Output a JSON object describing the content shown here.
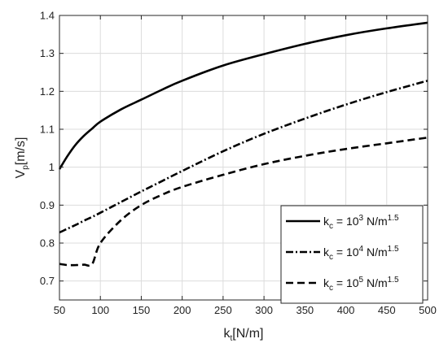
{
  "chart_data": {
    "type": "line",
    "xlabel": "k",
    "xlabel_sub": "t",
    "xlabel_unit": "[N/m]",
    "ylabel": "V",
    "ylabel_sub": "p",
    "ylabel_unit": "[m/s]",
    "xlim": [
      50,
      500
    ],
    "ylim": [
      0.65,
      1.4
    ],
    "xticks": [
      50,
      100,
      150,
      200,
      250,
      300,
      350,
      400,
      450,
      500
    ],
    "yticks": [
      0.7,
      0.8,
      0.9,
      1.0,
      1.1,
      1.2,
      1.3,
      1.4
    ],
    "ytick_labels": [
      "0.7",
      "0.8",
      "0.9",
      "1",
      "1.1",
      "1.2",
      "1.3",
      "1.4"
    ],
    "grid": true,
    "legend_position": "bottom-right",
    "x": [
      50,
      60,
      70,
      80,
      90,
      100,
      125,
      150,
      175,
      200,
      250,
      300,
      350,
      400,
      450,
      500
    ],
    "series": [
      {
        "name_main": "k",
        "name_sub": "c",
        "name_eq": " = 10",
        "name_sup": "3",
        "name_unit": " N/m",
        "name_unit_sup": "1.5",
        "line_style": "solid",
        "values": [
          0.995,
          1.03,
          1.06,
          1.083,
          1.102,
          1.12,
          1.152,
          1.178,
          1.204,
          1.228,
          1.268,
          1.298,
          1.325,
          1.348,
          1.366,
          1.381
        ]
      },
      {
        "name_main": "k",
        "name_sub": "c",
        "name_eq": " = 10",
        "name_sup": "4",
        "name_unit": " N/m",
        "name_unit_sup": "1.5",
        "line_style": "dashdot",
        "values": [
          0.828,
          0.838,
          0.848,
          0.859,
          0.869,
          0.88,
          0.908,
          0.936,
          0.963,
          0.99,
          1.042,
          1.088,
          1.128,
          1.165,
          1.198,
          1.228
        ]
      },
      {
        "name_main": "k",
        "name_sub": "c",
        "name_eq": " = 10",
        "name_sup": "5",
        "name_unit": " N/m",
        "name_unit_sup": "1.5",
        "line_style": "dashed",
        "values": [
          0.745,
          0.742,
          0.742,
          0.743,
          0.745,
          0.8,
          0.86,
          0.9,
          0.927,
          0.948,
          0.98,
          1.008,
          1.03,
          1.048,
          1.063,
          1.078
        ]
      }
    ]
  }
}
